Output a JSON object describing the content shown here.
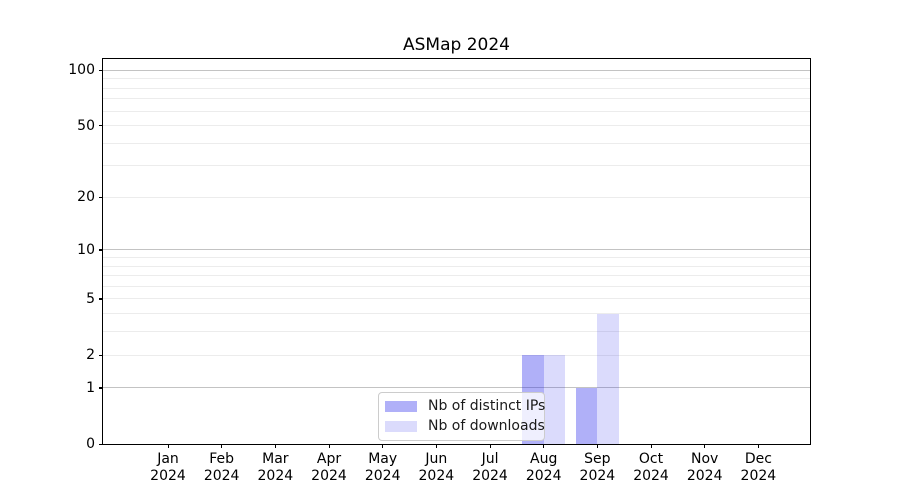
{
  "chart_data": {
    "type": "bar",
    "title": "ASMap 2024",
    "categories": [
      "Jan",
      "Feb",
      "Mar",
      "Apr",
      "May",
      "Jun",
      "Jul",
      "Aug",
      "Sep",
      "Oct",
      "Nov",
      "Dec"
    ],
    "year": "2024",
    "series": [
      {
        "name": "Nb of distinct IPs",
        "color": "rgba(30,30,235,0.35)",
        "color_hex": "#a9a9f5",
        "values": [
          0,
          0,
          0,
          0,
          0,
          0,
          0,
          2,
          1,
          0,
          0,
          0
        ]
      },
      {
        "name": "Nb of downloads",
        "color": "rgba(30,30,235,0.16)",
        "color_hex": "#d9d9f8",
        "values": [
          0,
          0,
          0,
          0,
          0,
          0,
          0,
          2,
          4,
          0,
          0,
          0
        ]
      }
    ],
    "xlabel": "",
    "ylabel": "",
    "y_scale": "log1p",
    "ylim": [
      0,
      115
    ],
    "y_tick_labels": [
      0,
      1,
      2,
      5,
      10,
      20,
      50,
      100
    ],
    "y_major_gridlines": [
      1,
      10,
      100
    ],
    "y_minor_gridlines": [
      2,
      3,
      4,
      5,
      6,
      7,
      8,
      9,
      20,
      30,
      40,
      50,
      60,
      70,
      80,
      90
    ],
    "grid": "horizontal, both major and minor",
    "legend_position": "lower center",
    "colors": {
      "grid_major": "#c3c3c3",
      "grid_minor": "#ececec",
      "spine": "#000000",
      "text": "#000000",
      "background": "#ffffff"
    }
  }
}
